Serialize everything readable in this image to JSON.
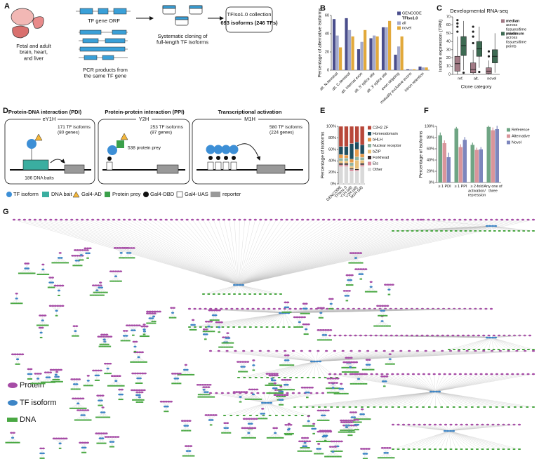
{
  "figure": {
    "panel_labels": [
      "A",
      "B",
      "C",
      "D",
      "E",
      "F",
      "G"
    ],
    "panel_a": {
      "source": "Fetal and adult brain, heart, and liver",
      "orf": "TF gene ORF",
      "pcr": "PCR products from the same TF gene",
      "cloning": "Systematic cloning of full-length TF isoforms",
      "collection_title": "TFIso1.0 collection",
      "collection_count": "693 isoforms (246 TFs)"
    },
    "panel_d": {
      "assays": [
        {
          "title": "Protein-DNA interaction (PDI)",
          "method": "eY1H",
          "count": "171 TF isoforms (80 genes)",
          "partners": "186 DNA baits"
        },
        {
          "title": "Protein-protein interaction (PPI)",
          "method": "Y2H",
          "count": "253 TF isoforms (87 genes)",
          "partners": "538 protein prey"
        },
        {
          "title": "Transcriptional activation",
          "method": "M1H",
          "count": "580 TF isoforms (224 genes)"
        }
      ],
      "legend": [
        "TF isoform",
        "DNA bait",
        "Gal4-AD",
        "Protein prey",
        "Gal4-DBD",
        "Gal4-UAS",
        "reporter"
      ]
    },
    "panel_g": {
      "legend": [
        "Protein",
        "TF isoform",
        "DNA"
      ]
    }
  },
  "chart_data": [
    {
      "type": "bar",
      "ylabel": "Percentage of alternative isoforms",
      "categories": [
        "alt. N-terminal",
        "alt. C-terminal",
        "alt. internal exon",
        "alt. 5' splice site",
        "alt. 3' splice site",
        "exon skipping",
        "mutually exclusive exons",
        "intron retention"
      ],
      "legend_title": "TFIso1.0",
      "series": [
        {
          "name": "GENCODE",
          "color": "#4a4e8c",
          "values": [
            56,
            57,
            23,
            35,
            47,
            17,
            1,
            4
          ]
        },
        {
          "name": "all",
          "color": "#a3a9cc",
          "values": [
            38,
            44,
            31,
            38,
            47,
            26,
            1,
            3
          ]
        },
        {
          "name": "novel",
          "color": "#e2a93b",
          "values": [
            25,
            37,
            44,
            37,
            54,
            37,
            1,
            3
          ]
        }
      ],
      "ylim": [
        0,
        60
      ],
      "yticks": [
        0,
        20,
        40,
        60
      ]
    },
    {
      "type": "box",
      "title": "Developmental RNA-seq",
      "ylabel": "Isoform expression (TPM)",
      "xlabel": "Clone category",
      "categories": [
        "ref.",
        "alt.",
        "novel"
      ],
      "legend_note": "across tissues/time points",
      "series": [
        {
          "name": "median",
          "color": "#a27a85",
          "values": [
            {
              "min": 0,
              "q1": 4,
              "median": 13,
              "q3": 22,
              "max": 46,
              "outliers": [
                52,
                58,
                62,
                66
              ]
            },
            {
              "min": 0,
              "q1": 2,
              "median": 6,
              "q3": 14,
              "max": 30,
              "outliers": [
                38,
                46,
                52,
                58
              ]
            },
            {
              "min": 0,
              "q1": 1,
              "median": 4,
              "q3": 8,
              "max": 17,
              "outliers": [
                22,
                28
              ]
            }
          ]
        },
        {
          "name": "maximum",
          "color": "#3d6a52",
          "values": [
            {
              "min": 5,
              "q1": 23,
              "median": 35,
              "q3": 46,
              "max": 65,
              "outliers": [
                2
              ]
            },
            {
              "min": 8,
              "q1": 22,
              "median": 31,
              "q3": 40,
              "max": 58,
              "outliers": [
                3
              ]
            },
            {
              "min": 2,
              "q1": 14,
              "median": 22,
              "q3": 30,
              "max": 50,
              "outliers": []
            }
          ]
        }
      ],
      "ylim": [
        0,
        70
      ],
      "yticks": [
        0,
        10,
        20,
        30,
        40,
        50,
        60,
        70
      ]
    },
    {
      "type": "stacked_bar",
      "ylabel": "Percentage of isoforms",
      "categories": [
        "GENCODE",
        "TFIso1.0",
        "Y1H (all)",
        "Y2H (all)",
        "M1H (all)"
      ],
      "series": [
        {
          "name": "C2H2 ZF",
          "color": "#b8483a",
          "values": [
            35,
            35,
            30,
            27,
            32
          ]
        },
        {
          "name": "Homeodomain",
          "color": "#1f4e5f",
          "values": [
            14,
            15,
            27,
            13,
            16
          ]
        },
        {
          "name": "bHLH",
          "color": "#e59a4a",
          "values": [
            6,
            5,
            6,
            13,
            6
          ]
        },
        {
          "name": "Nuclear receptor",
          "color": "#8fb3a0",
          "values": [
            5,
            5,
            6,
            6,
            5
          ]
        },
        {
          "name": "bZIP",
          "color": "#e8c07a",
          "values": [
            4,
            4,
            4,
            15,
            5
          ]
        },
        {
          "name": "Forkhead",
          "color": "#3a2a2a",
          "values": [
            3,
            3,
            2,
            2,
            3
          ]
        },
        {
          "name": "Ets",
          "color": "#d98a9a",
          "values": [
            3,
            3,
            3,
            2,
            3
          ]
        },
        {
          "name": "Other",
          "color": "#d9d9d9",
          "values": [
            30,
            30,
            22,
            22,
            30
          ]
        }
      ],
      "ylim": [
        0,
        100
      ],
      "yticks": [
        {
          "value": 0,
          "label": "0%"
        },
        {
          "value": 20,
          "label": "20%"
        },
        {
          "value": 40,
          "label": "40%"
        },
        {
          "value": 60,
          "label": "60%"
        },
        {
          "value": 80,
          "label": "80%"
        },
        {
          "value": 100,
          "label": "100%"
        }
      ]
    },
    {
      "type": "bar",
      "ylabel": "Percentage of isoforms",
      "categories": [
        "≥ 1 PDI",
        "≥ 1 PPI",
        "≥ 2-fold activation/ repression",
        "Any one of three"
      ],
      "series": [
        {
          "name": "Reference",
          "color": "#6fa584",
          "values": [
            84,
            96,
            67,
            99
          ],
          "errors": [
            5,
            3,
            4,
            2
          ]
        },
        {
          "name": "Alternative",
          "color": "#d9959b",
          "values": [
            70,
            63,
            58,
            93
          ],
          "errors": [
            5,
            5,
            4,
            5
          ]
        },
        {
          "name": "Novel",
          "color": "#7d86bd",
          "values": [
            45,
            76,
            59,
            95
          ],
          "errors": [
            8,
            5,
            4,
            6
          ]
        }
      ],
      "ylim": [
        0,
        100
      ],
      "yticks": [
        {
          "value": 0,
          "label": "0%"
        },
        {
          "value": 20,
          "label": "20%"
        },
        {
          "value": 40,
          "label": "40%"
        },
        {
          "value": 60,
          "label": "60%"
        },
        {
          "value": 80,
          "label": "80%"
        },
        {
          "value": 100,
          "label": "100%"
        }
      ]
    }
  ]
}
